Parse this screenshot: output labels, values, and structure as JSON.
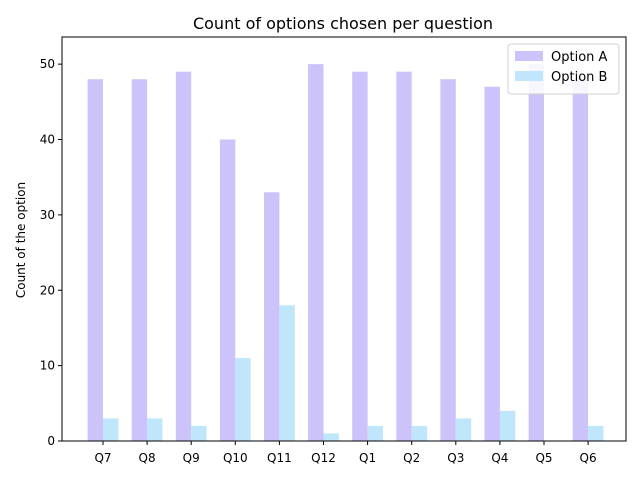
{
  "chart_data": {
    "type": "bar",
    "title": "Count of options chosen per question",
    "xlabel": "",
    "ylabel": "Count of the option",
    "categories": [
      "Q7",
      "Q8",
      "Q9",
      "Q10",
      "Q11",
      "Q12",
      "Q1",
      "Q2",
      "Q3",
      "Q4",
      "Q5",
      "Q6"
    ],
    "series": [
      {
        "name": "Option A",
        "color": "#cbc3fa",
        "values": [
          48,
          48,
          49,
          40,
          33,
          50,
          49,
          49,
          48,
          47,
          50,
          48
        ]
      },
      {
        "name": "Option B",
        "color": "#c0e6fb",
        "values": [
          3,
          3,
          2,
          11,
          18,
          1,
          2,
          2,
          3,
          4,
          0,
          2
        ]
      }
    ],
    "ylim": [
      0,
      53.6
    ],
    "yticks": [
      0,
      10,
      20,
      30,
      40,
      50
    ],
    "grid": false,
    "legend_position": "top-right"
  }
}
